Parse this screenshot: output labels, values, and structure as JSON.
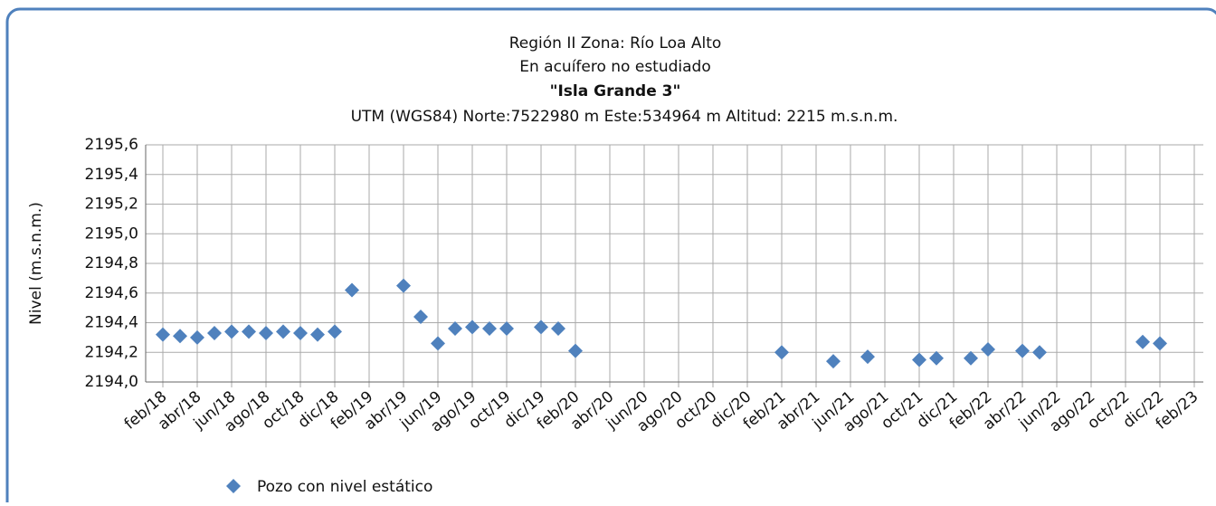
{
  "chart_data": {
    "type": "scatter",
    "title": "Región II  Zona: Río Loa Alto",
    "subtitle": "En acuífero no estudiado",
    "well_name": "\"Isla Grande 3\"",
    "location": "UTM (WGS84) Norte:7522980 m   Este:534964 m Altitud: 2215 m.s.n.m.",
    "y_label": "Nivel (m.s.n.m.)",
    "series": [
      {
        "name": "Pozo con nivel estático",
        "color": "#4f81bd",
        "x": [
          "2018-02",
          "2018-03",
          "2018-04",
          "2018-05",
          "2018-06",
          "2018-07",
          "2018-08",
          "2018-09",
          "2018-10",
          "2018-11",
          "2018-12",
          "2019-01",
          "2019-04",
          "2019-05",
          "2019-06",
          "2019-07",
          "2019-08",
          "2019-09",
          "2019-10",
          "2019-12",
          "2020-01",
          "2020-02",
          "2021-02",
          "2021-05",
          "2021-07",
          "2021-10",
          "2021-11",
          "2022-01",
          "2022-02",
          "2022-04",
          "2022-05",
          "2022-11",
          "2022-12"
        ],
        "values": [
          2194.32,
          2194.31,
          2194.3,
          2194.33,
          2194.34,
          2194.34,
          2194.33,
          2194.34,
          2194.33,
          2194.32,
          2194.34,
          2194.62,
          2194.65,
          2194.44,
          2194.26,
          2194.36,
          2194.37,
          2194.36,
          2194.36,
          2194.37,
          2194.36,
          2194.21,
          2194.2,
          2194.14,
          2194.17,
          2194.15,
          2194.16,
          2194.16,
          2194.22,
          2194.21,
          2194.2,
          2194.27,
          2194.26
        ]
      }
    ],
    "xlim": [
      "2018-01",
      "2023-02"
    ],
    "xticks": [
      {
        "value": "2018-02",
        "label": "feb/18"
      },
      {
        "value": "2018-04",
        "label": "abr/18"
      },
      {
        "value": "2018-06",
        "label": "jun/18"
      },
      {
        "value": "2018-08",
        "label": "ago/18"
      },
      {
        "value": "2018-10",
        "label": "oct/18"
      },
      {
        "value": "2018-12",
        "label": "dic/18"
      },
      {
        "value": "2019-02",
        "label": "feb/19"
      },
      {
        "value": "2019-04",
        "label": "abr/19"
      },
      {
        "value": "2019-06",
        "label": "jun/19"
      },
      {
        "value": "2019-08",
        "label": "ago/19"
      },
      {
        "value": "2019-10",
        "label": "oct/19"
      },
      {
        "value": "2019-12",
        "label": "dic/19"
      },
      {
        "value": "2020-02",
        "label": "feb/20"
      },
      {
        "value": "2020-04",
        "label": "abr/20"
      },
      {
        "value": "2020-06",
        "label": "jun/20"
      },
      {
        "value": "2020-08",
        "label": "ago/20"
      },
      {
        "value": "2020-10",
        "label": "oct/20"
      },
      {
        "value": "2020-12",
        "label": "dic/20"
      },
      {
        "value": "2021-02",
        "label": "feb/21"
      },
      {
        "value": "2021-04",
        "label": "abr/21"
      },
      {
        "value": "2021-06",
        "label": "jun/21"
      },
      {
        "value": "2021-08",
        "label": "ago/21"
      },
      {
        "value": "2021-10",
        "label": "oct/21"
      },
      {
        "value": "2021-12",
        "label": "dic/21"
      },
      {
        "value": "2022-02",
        "label": "feb/22"
      },
      {
        "value": "2022-04",
        "label": "abr/22"
      },
      {
        "value": "2022-06",
        "label": "jun/22"
      },
      {
        "value": "2022-08",
        "label": "ago/22"
      },
      {
        "value": "2022-10",
        "label": "oct/22"
      },
      {
        "value": "2022-12",
        "label": "dic/22"
      },
      {
        "value": "2023-02",
        "label": "feb/23"
      }
    ],
    "ylim": [
      2194.0,
      2195.6
    ],
    "yticks": [
      {
        "value": 2194.0,
        "label": "2194,0"
      },
      {
        "value": 2194.2,
        "label": "2194,2"
      },
      {
        "value": 2194.4,
        "label": "2194,4"
      },
      {
        "value": 2194.6,
        "label": "2194,6"
      },
      {
        "value": 2194.8,
        "label": "2194,8"
      },
      {
        "value": 2195.0,
        "label": "2195,0"
      },
      {
        "value": 2195.2,
        "label": "2195,2"
      },
      {
        "value": 2195.4,
        "label": "2195,4"
      },
      {
        "value": 2195.6,
        "label": "2195,6"
      }
    ],
    "grid": true
  }
}
